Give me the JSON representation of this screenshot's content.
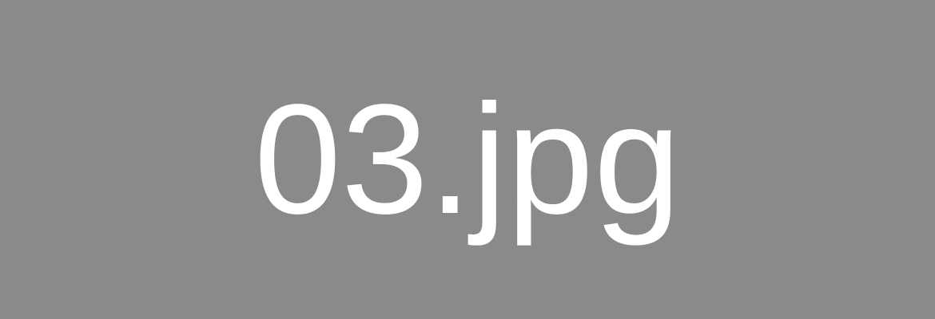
{
  "placeholder": {
    "text": "03.jpg",
    "background_color": "#8a8a8a",
    "text_color": "#ffffff"
  }
}
